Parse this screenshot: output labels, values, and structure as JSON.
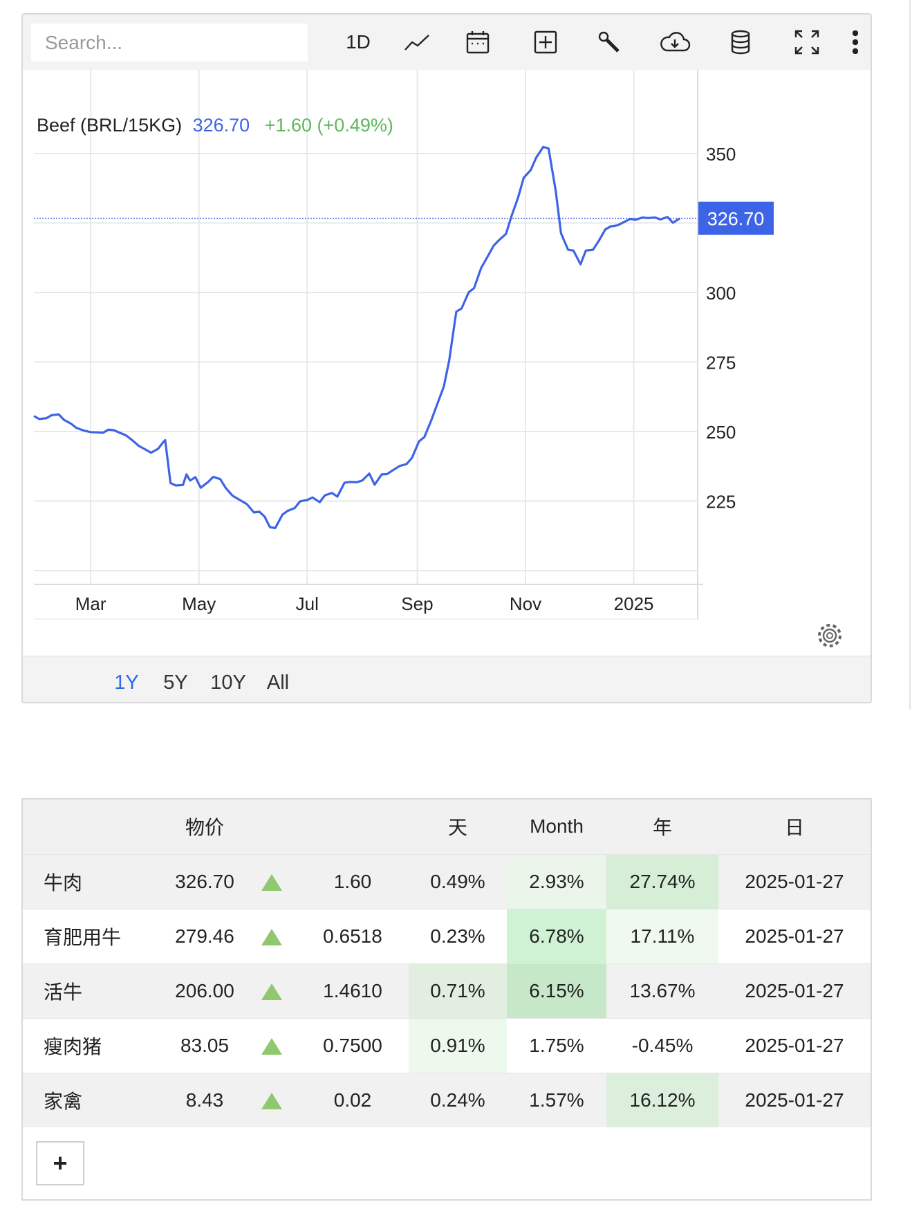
{
  "toolbar": {
    "search_placeholder": "Search...",
    "interval_label": "1D",
    "icons": [
      "line-chart-icon",
      "calendar-icon",
      "add-box-icon",
      "wrench-icon",
      "cloud-download-icon",
      "database-icon",
      "fullscreen-icon",
      "more-vert-icon"
    ]
  },
  "legend": {
    "name": "Beef (BRL/15KG)",
    "price": "326.70",
    "change": "+1.60 (+0.49%)",
    "price_color": "#3d64e6",
    "change_color": "#5cb85c"
  },
  "chart_data": {
    "type": "line",
    "title": "Beef (BRL/15KG)",
    "series": [
      {
        "name": "Beef (BRL/15KG)",
        "color": "#3d64e6",
        "points": [
          [
            "2024-01-29",
            255.6
          ],
          [
            "2024-02-01",
            254.5
          ],
          [
            "2024-02-05",
            254.8
          ],
          [
            "2024-02-08",
            255.9
          ],
          [
            "2024-02-12",
            256.2
          ],
          [
            "2024-02-15",
            254.2
          ],
          [
            "2024-02-19",
            252.8
          ],
          [
            "2024-02-22",
            251.3
          ],
          [
            "2024-02-26",
            250.4
          ],
          [
            "2024-03-01",
            249.8
          ],
          [
            "2024-03-05",
            249.7
          ],
          [
            "2024-03-08",
            249.6
          ],
          [
            "2024-03-11",
            250.7
          ],
          [
            "2024-03-14",
            250.5
          ],
          [
            "2024-03-18",
            249.4
          ],
          [
            "2024-03-21",
            248.6
          ],
          [
            "2024-03-25",
            246.6
          ],
          [
            "2024-03-28",
            244.9
          ],
          [
            "2024-04-01",
            243.5
          ],
          [
            "2024-04-04",
            242.4
          ],
          [
            "2024-04-08",
            243.8
          ],
          [
            "2024-04-11",
            246.3
          ],
          [
            "2024-04-12",
            246.9
          ],
          [
            "2024-04-15",
            231.5
          ],
          [
            "2024-04-18",
            230.6
          ],
          [
            "2024-04-22",
            230.8
          ],
          [
            "2024-04-24",
            234.6
          ],
          [
            "2024-04-26",
            232.4
          ],
          [
            "2024-04-29",
            233.6
          ],
          [
            "2024-05-02",
            229.8
          ],
          [
            "2024-05-06",
            231.8
          ],
          [
            "2024-05-09",
            233.7
          ],
          [
            "2024-05-13",
            232.9
          ],
          [
            "2024-05-16",
            229.8
          ],
          [
            "2024-05-20",
            226.9
          ],
          [
            "2024-05-24",
            225.4
          ],
          [
            "2024-05-28",
            223.9
          ],
          [
            "2024-06-01",
            220.9
          ],
          [
            "2024-06-04",
            221.2
          ],
          [
            "2024-06-07",
            219.4
          ],
          [
            "2024-06-10",
            215.6
          ],
          [
            "2024-06-13",
            215.3
          ],
          [
            "2024-06-17",
            220.1
          ],
          [
            "2024-06-20",
            221.5
          ],
          [
            "2024-06-24",
            222.5
          ],
          [
            "2024-06-27",
            224.9
          ],
          [
            "2024-07-01",
            225.4
          ],
          [
            "2024-07-04",
            226.3
          ],
          [
            "2024-07-08",
            224.6
          ],
          [
            "2024-07-11",
            227.1
          ],
          [
            "2024-07-15",
            227.9
          ],
          [
            "2024-07-18",
            226.6
          ],
          [
            "2024-07-22",
            231.6
          ],
          [
            "2024-07-25",
            231.9
          ],
          [
            "2024-07-29",
            231.8
          ],
          [
            "2024-08-01",
            232.4
          ],
          [
            "2024-08-05",
            234.9
          ],
          [
            "2024-08-08",
            230.9
          ],
          [
            "2024-08-12",
            234.6
          ],
          [
            "2024-08-15",
            234.7
          ],
          [
            "2024-08-19",
            236.4
          ],
          [
            "2024-08-22",
            237.6
          ],
          [
            "2024-08-26",
            238.3
          ],
          [
            "2024-08-29",
            240.5
          ],
          [
            "2024-09-02",
            246.5
          ],
          [
            "2024-09-05",
            248.0
          ],
          [
            "2024-09-09",
            254.2
          ],
          [
            "2024-09-12",
            259.4
          ],
          [
            "2024-09-16",
            266.2
          ],
          [
            "2024-09-19",
            275.5
          ],
          [
            "2024-09-23",
            293.1
          ],
          [
            "2024-09-26",
            294.3
          ],
          [
            "2024-09-30",
            300.1
          ],
          [
            "2024-10-03",
            301.6
          ],
          [
            "2024-10-07",
            308.8
          ],
          [
            "2024-10-10",
            312.2
          ],
          [
            "2024-10-14",
            316.8
          ],
          [
            "2024-10-17",
            318.8
          ],
          [
            "2024-10-21",
            321.1
          ],
          [
            "2024-10-24",
            327.3
          ],
          [
            "2024-10-28",
            334.5
          ],
          [
            "2024-10-31",
            341.3
          ],
          [
            "2024-11-04",
            344.1
          ],
          [
            "2024-11-07",
            348.5
          ],
          [
            "2024-11-11",
            352.4
          ],
          [
            "2024-11-14",
            351.8
          ],
          [
            "2024-11-18",
            336.6
          ],
          [
            "2024-11-21",
            321.3
          ],
          [
            "2024-11-25",
            315.4
          ],
          [
            "2024-11-28",
            315.1
          ],
          [
            "2024-12-02",
            310.2
          ],
          [
            "2024-12-05",
            315.1
          ],
          [
            "2024-12-09",
            315.4
          ],
          [
            "2024-12-12",
            318.3
          ],
          [
            "2024-12-16",
            322.7
          ],
          [
            "2024-12-19",
            323.8
          ],
          [
            "2024-12-23",
            324.2
          ],
          [
            "2024-12-26",
            325.2
          ],
          [
            "2024-12-30",
            326.5
          ],
          [
            "2025-01-02",
            326.2
          ],
          [
            "2025-01-06",
            327.0
          ],
          [
            "2025-01-09",
            326.8
          ],
          [
            "2025-01-13",
            327.0
          ],
          [
            "2025-01-16",
            326.3
          ],
          [
            "2025-01-20",
            327.2
          ],
          [
            "2025-01-23",
            325.1
          ],
          [
            "2025-01-27",
            326.7
          ]
        ]
      }
    ],
    "x_ticks": [
      {
        "date": "2024-03-01",
        "label": "Mar"
      },
      {
        "date": "2024-05-01",
        "label": "May"
      },
      {
        "date": "2024-07-01",
        "label": "Jul"
      },
      {
        "date": "2024-09-01",
        "label": "Sep"
      },
      {
        "date": "2024-11-01",
        "label": "Nov"
      },
      {
        "date": "2025-01-01",
        "label": "2025"
      }
    ],
    "xlim": [
      "2024-01-29",
      "2025-02-06"
    ],
    "y_ticks": [
      225,
      250,
      275,
      300,
      350
    ],
    "ylim": [
      200,
      355
    ],
    "last_value": 326.7,
    "last_value_label": "326.70",
    "grid": true,
    "xlabel": "",
    "ylabel": ""
  },
  "range_buttons": [
    {
      "label": "1Y",
      "active": true
    },
    {
      "label": "5Y",
      "active": false
    },
    {
      "label": "10Y",
      "active": false
    },
    {
      "label": "All",
      "active": false
    }
  ],
  "table": {
    "headers": [
      "物价",
      "天",
      "Month",
      "年",
      "日"
    ],
    "rows": [
      {
        "name": "牛肉",
        "price": "326.70",
        "change": "1.60",
        "day_pct": "0.49%",
        "month_pct": "2.93%",
        "year_pct": "27.74%",
        "date": "2025-01-27",
        "day_bg": "",
        "month_bg": "#ebf5ea",
        "year_bg": "#d6eed6"
      },
      {
        "name": "育肥用牛",
        "price": "279.46",
        "change": "0.6518",
        "day_pct": "0.23%",
        "month_pct": "6.78%",
        "year_pct": "17.11%",
        "date": "2025-01-27",
        "day_bg": "",
        "month_bg": "#d0f2d4",
        "year_bg": "#f0f9ef"
      },
      {
        "name": "活牛",
        "price": "206.00",
        "change": "1.4610",
        "day_pct": "0.71%",
        "month_pct": "6.15%",
        "year_pct": "13.67%",
        "date": "2025-01-27",
        "day_bg": "#e2efe0",
        "month_bg": "#c7e8c8",
        "year_bg": "#f0f1f0"
      },
      {
        "name": "瘦肉猪",
        "price": "83.05",
        "change": "0.7500",
        "day_pct": "0.91%",
        "month_pct": "1.75%",
        "year_pct": "-0.45%",
        "date": "2025-01-27",
        "day_bg": "#eef9ee",
        "month_bg": "",
        "year_bg": ""
      },
      {
        "name": "家禽",
        "price": "8.43",
        "change": "0.02",
        "day_pct": "0.24%",
        "month_pct": "1.57%",
        "year_pct": "16.12%",
        "date": "2025-01-27",
        "day_bg": "",
        "month_bg": "",
        "year_bg": "#dcefdd"
      }
    ],
    "add_label": "+"
  }
}
